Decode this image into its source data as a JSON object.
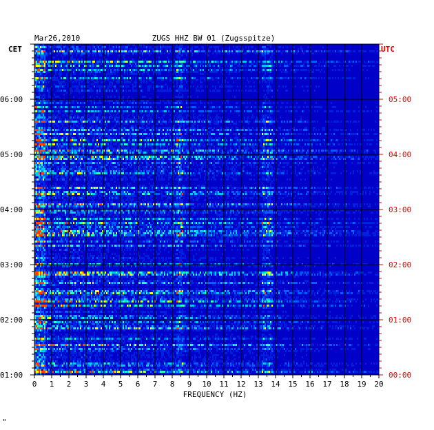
{
  "chart_data": {
    "type": "heatmap",
    "date": "Mar26,2010",
    "title": "ZUGS HHZ BW 01 (Zugsspitze)",
    "left_timezone": "CET",
    "right_timezone": "UTC",
    "xlabel": "FREQUENCY (HZ)",
    "xlim": [
      0,
      20
    ],
    "x_ticks": [
      "0",
      "1",
      "2",
      "3",
      "4",
      "5",
      "6",
      "7",
      "8",
      "9",
      "10",
      "11",
      "12",
      "13",
      "14",
      "15",
      "16",
      "17",
      "18",
      "19",
      "20"
    ],
    "left_ticks": [
      "01:00",
      "02:00",
      "03:00",
      "04:00",
      "05:00",
      "06:00"
    ],
    "right_ticks": [
      "00:00",
      "01:00",
      "02:00",
      "03:00",
      "04:00",
      "05:00"
    ],
    "left_time_range": [
      "01:00",
      "07:00"
    ],
    "right_time_range": [
      "00:00",
      "06:00"
    ],
    "colormap": [
      "#0000c8",
      "#0020e0",
      "#0060ff",
      "#00c8ff",
      "#30ffc0",
      "#ffff00",
      "#ff4000"
    ],
    "features": [
      {
        "desc": "strong low-frequency energy",
        "freq_range": [
          0,
          0.6
        ]
      },
      {
        "desc": "intermittent energy band",
        "freq_range": [
          13.2,
          13.8
        ]
      },
      {
        "desc": "intermittent energy band",
        "freq_range": [
          8.2,
          8.6
        ]
      }
    ],
    "corner_mark": "\""
  },
  "colors": {
    "left_axis": "#000000",
    "right_axis": "#e00000",
    "grid": "#000000"
  }
}
